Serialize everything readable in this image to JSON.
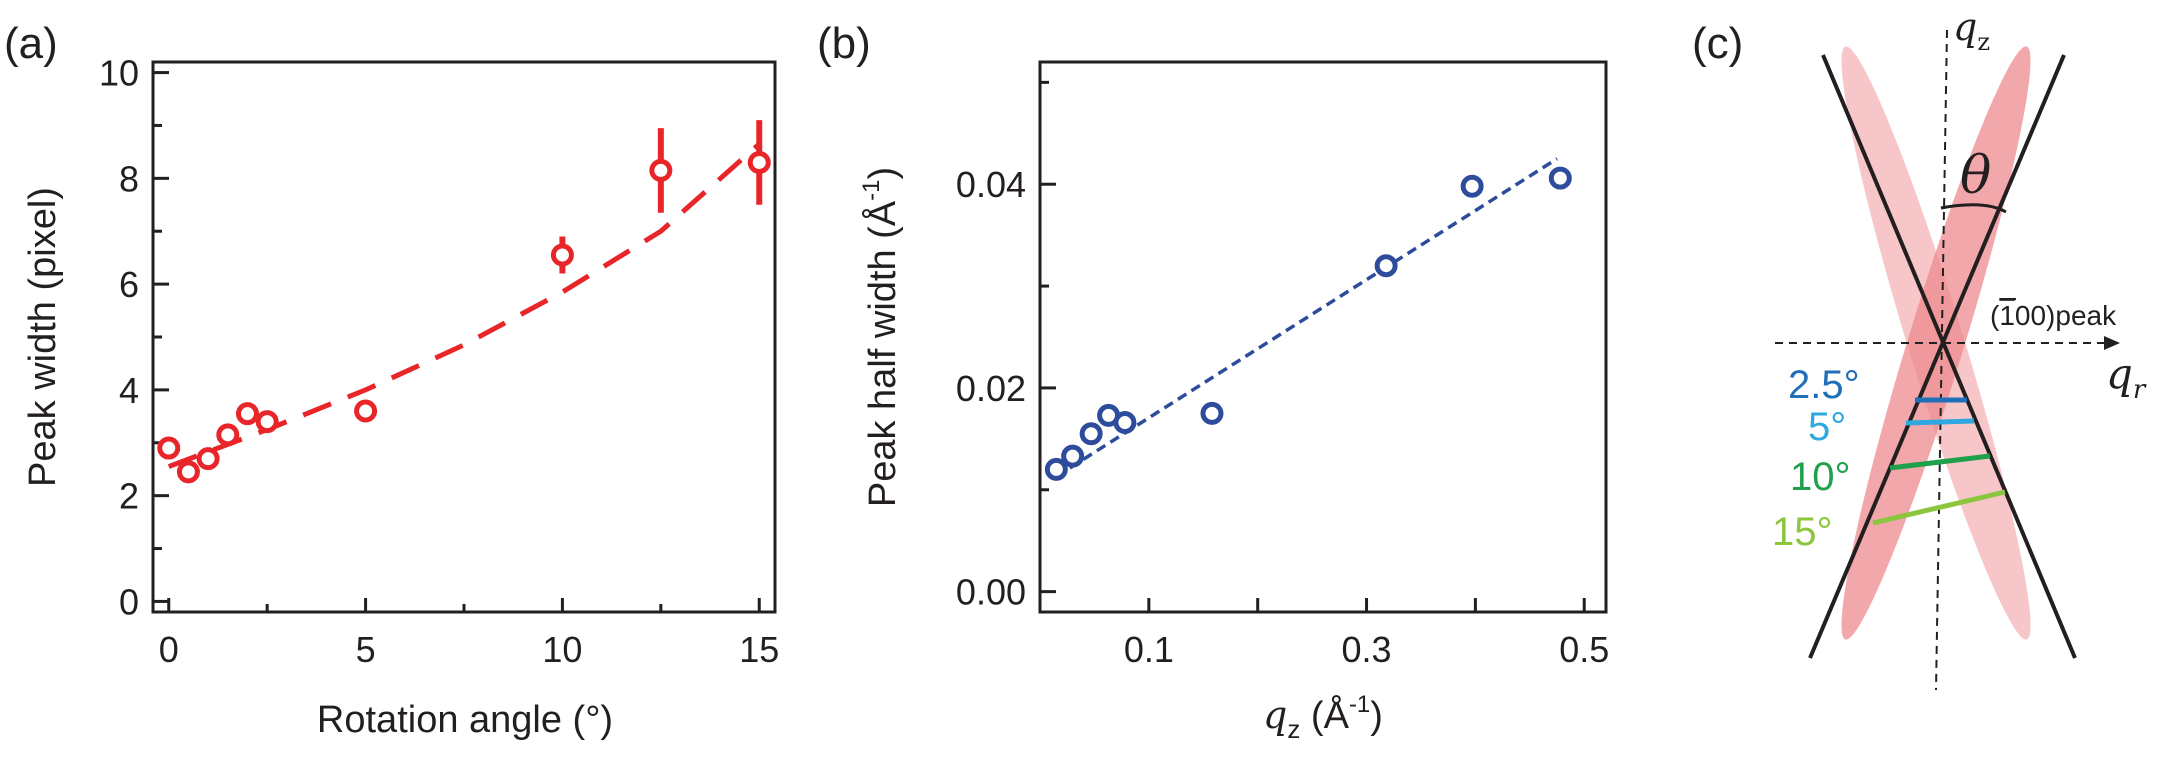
{
  "panels": {
    "a": {
      "label": "(a)"
    },
    "b": {
      "label": "(b)"
    },
    "c": {
      "label": "(c)"
    }
  },
  "chart_data": [
    {
      "id": "a",
      "type": "scatter",
      "xlabel": "Rotation angle (°)",
      "ylabel": "Peak width (pixel)",
      "xlim": [
        -0.4,
        15.4
      ],
      "ylim": [
        -0.2,
        10.2
      ],
      "xticks": [
        0,
        5,
        10,
        15
      ],
      "yticks": [
        0,
        2,
        4,
        6,
        8,
        10
      ],
      "xtick_labels": [
        "0",
        "5",
        "10",
        "15"
      ],
      "ytick_labels": [
        "0",
        "2",
        "4",
        "6",
        "8",
        "10"
      ],
      "color": "#e8262a",
      "points": [
        {
          "x": 0,
          "y": 2.9,
          "err": 0.12
        },
        {
          "x": 0.5,
          "y": 2.45,
          "err": 0.12
        },
        {
          "x": 1.0,
          "y": 2.7,
          "err": 0.12
        },
        {
          "x": 1.5,
          "y": 3.15,
          "err": 0.12
        },
        {
          "x": 2.0,
          "y": 3.55,
          "err": 0.12
        },
        {
          "x": 2.5,
          "y": 3.4,
          "err": 0.12
        },
        {
          "x": 5.0,
          "y": 3.6,
          "err": 0.12
        },
        {
          "x": 10.0,
          "y": 6.55,
          "err": 0.35
        },
        {
          "x": 12.5,
          "y": 8.15,
          "err": 0.8
        },
        {
          "x": 15.0,
          "y": 8.3,
          "err": 0.8
        }
      ],
      "fit": {
        "style": "dashed",
        "x": [
          0,
          2.5,
          5,
          7.5,
          10,
          12.5,
          15
        ],
        "y": [
          2.55,
          3.25,
          4.0,
          4.85,
          5.85,
          7.0,
          8.65
        ]
      }
    },
    {
      "id": "b",
      "type": "scatter",
      "xlabel_main": "q",
      "xlabel_sub": "z",
      "xlabel_unit": " (Å",
      "xlabel_sup": "-1",
      "xlabel_close": ")",
      "ylabel": "Peak half width (Å",
      "ylabel_sup": "-1",
      "ylabel_close": ")",
      "xlim": [
        0.0,
        0.52
      ],
      "ylim": [
        -0.002,
        0.052
      ],
      "xticks_major": [
        0.1,
        0.3,
        0.5
      ],
      "xtick_labels": [
        "0.1",
        "0.3",
        "0.5"
      ],
      "xticks_minor": [
        0.2,
        0.4
      ],
      "yticks": [
        0.0,
        0.02,
        0.04
      ],
      "ytick_labels": [
        "0.00",
        "0.02",
        "0.04"
      ],
      "yticks_minor": [
        0.01,
        0.03,
        0.05
      ],
      "color": "#2e4c9c",
      "points": [
        {
          "x": 0.015,
          "y": 0.012
        },
        {
          "x": 0.03,
          "y": 0.0133
        },
        {
          "x": 0.047,
          "y": 0.0155
        },
        {
          "x": 0.063,
          "y": 0.0173
        },
        {
          "x": 0.078,
          "y": 0.0166
        },
        {
          "x": 0.158,
          "y": 0.0175
        },
        {
          "x": 0.318,
          "y": 0.032
        },
        {
          "x": 0.397,
          "y": 0.0398
        },
        {
          "x": 0.478,
          "y": 0.0406
        }
      ],
      "fit": {
        "style": "dashed",
        "x": [
          0.015,
          0.475
        ],
        "y": [
          0.0113,
          0.0425
        ]
      }
    }
  ],
  "diagram_c": {
    "qz_main": "q",
    "qz_sub": "z",
    "qr_main": "q",
    "qr_sub": "r",
    "theta": "θ",
    "peak_overbar": "1",
    "peak_prefix": "(",
    "peak_suffix": "00)peak",
    "angles": [
      {
        "label": "2.5°",
        "color": "#1f6fb8"
      },
      {
        "label": "5°",
        "color": "#2ea8df"
      },
      {
        "label": "10°",
        "color": "#1fa04a"
      },
      {
        "label": "15°",
        "color": "#8cc63e"
      }
    ],
    "ellipse_color": "#f08b8f"
  }
}
